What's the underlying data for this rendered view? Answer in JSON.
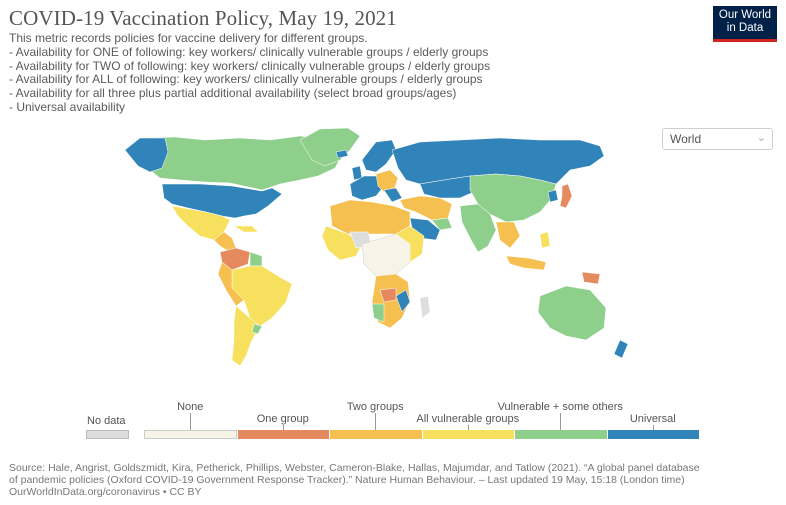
{
  "title": "COVID-19 Vaccination Policy, May 19, 2021",
  "subtitle": [
    "This metric records policies for vaccine delivery for different groups.",
    "- Availability for ONE of following: key workers/ clinically vulnerable groups / elderly groups",
    "- Availability for TWO of following: key workers/ clinically vulnerable groups / elderly groups",
    "- Availability for ALL of following: key workers/ clinically vulnerable groups / elderly groups",
    "- Availability for all three plus partial additional availability (select broad groups/ages)",
    "- Universal availability"
  ],
  "logo": {
    "line1": "Our World",
    "line2": "in Data"
  },
  "region_select": {
    "value": "World",
    "icon": "chevron-down-icon"
  },
  "legend": {
    "no_data": {
      "label": "No data",
      "color": "#dddddd"
    },
    "bins": [
      {
        "label": "None",
        "color": "#f7f3e7"
      },
      {
        "label": "One group",
        "color": "#e58a5f"
      },
      {
        "label": "Two groups",
        "color": "#f5c04f"
      },
      {
        "label": "All vulnerable groups",
        "color": "#f7e05d"
      },
      {
        "label": "Vulnerable + some others",
        "color": "#8fcf8c"
      },
      {
        "label": "Universal",
        "color": "#3184b9"
      }
    ]
  },
  "source": {
    "line1": "Source: Hale, Angrist, Goldszmidt, Kira, Petherick, Phillips, Webster, Cameron-Blake, Hallas, Majumdar, and Tatlow (2021). “A global panel database",
    "line2": "of pandemic policies (Oxford COVID-19 Government Response Tracker).” Nature Human Behaviour. – Last updated 19 May, 15:18 (London time)",
    "line3": "OurWorldInData.org/coronavirus • CC BY"
  }
}
